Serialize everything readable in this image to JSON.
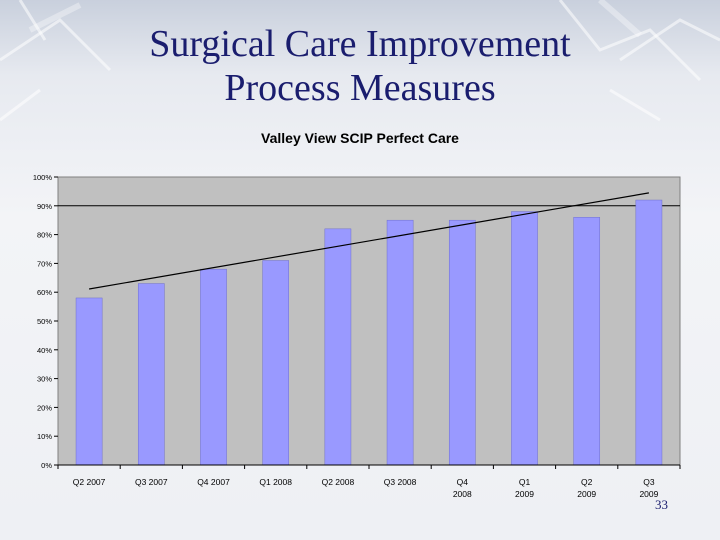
{
  "slide": {
    "title_line1": "Surgical Care Improvement",
    "title_line2": "Process Measures",
    "page_number": "33"
  },
  "colors": {
    "title": "#1a1d6e",
    "bar": "#9999ff",
    "plot_background": "#c0c0c0"
  },
  "chart_data": {
    "type": "bar",
    "title": "Valley View SCIP Perfect Care",
    "xlabel": "",
    "ylabel": "",
    "categories": [
      [
        "Q2 2007"
      ],
      [
        "Q3 2007"
      ],
      [
        "Q4 2007"
      ],
      [
        "Q1 2008"
      ],
      [
        "Q2 2008"
      ],
      [
        "Q3 2008"
      ],
      [
        "Q4",
        "2008"
      ],
      [
        "Q1",
        "2009"
      ],
      [
        "Q2",
        "2009"
      ],
      [
        "Q3",
        "2009"
      ]
    ],
    "values": [
      58,
      63,
      68,
      71,
      82,
      85,
      85,
      88,
      86,
      92
    ],
    "ylim": [
      0,
      100
    ],
    "yticks": [
      "0%",
      "10%",
      "20%",
      "30%",
      "40%",
      "50%",
      "60%",
      "70%",
      "80%",
      "90%",
      "100%"
    ],
    "reference_line": 90,
    "trendline": true,
    "grid": false,
    "legend": "none"
  }
}
